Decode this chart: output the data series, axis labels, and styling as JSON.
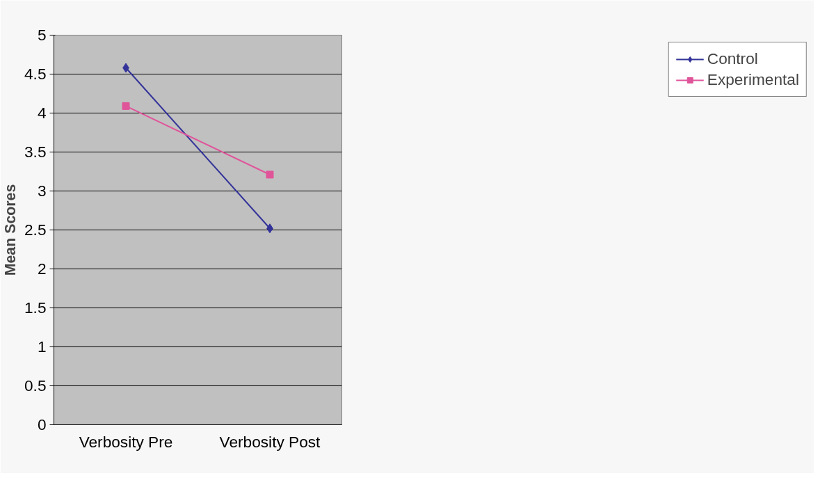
{
  "chart_data": {
    "type": "line",
    "ylabel": "Mean Scores",
    "categories": [
      "Verbosity Pre",
      "Verbosity Post"
    ],
    "series": [
      {
        "name": "Control",
        "color": "#333399",
        "marker": "diamond",
        "values": [
          4.58,
          2.52
        ]
      },
      {
        "name": "Experimental",
        "color": "#e0559a",
        "marker": "square",
        "values": [
          4.09,
          3.21
        ]
      }
    ],
    "ylim": [
      0,
      5
    ],
    "yticks": [
      0,
      0.5,
      1,
      1.5,
      2,
      2.5,
      3,
      3.5,
      4,
      4.5,
      5
    ],
    "grid": "y",
    "legend": "right",
    "line_style": "solid"
  }
}
